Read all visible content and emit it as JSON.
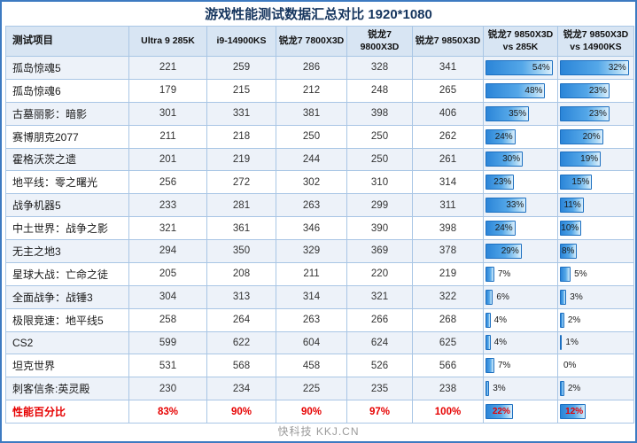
{
  "title": "游戏性能测试数据汇总对比 1920*1080",
  "watermark": "快科技 KKJ.CN",
  "colors": {
    "frame_blue": "#3d7ac1",
    "header_bg": "#d8e5f3",
    "row_shade": "#edf2f9",
    "grid_line": "#a9c6e5",
    "bar_fill": "#2b85d8",
    "bar_border": "#1c6fc0",
    "summary_red": "#e60000",
    "title_color": "#15355e"
  },
  "chart_data": {
    "type": "table",
    "title": "游戏性能测试数据汇总对比 1920*1080",
    "columns": [
      "测试项目",
      "Ultra 9 285K",
      "i9-14900KS",
      "锐龙7 7800X3D",
      "锐龙7 9800X3D",
      "锐龙7 9850X3D",
      "锐龙7 9850X3D\nvs 285K",
      "锐龙7 9850X3D\nvs 14900KS"
    ],
    "bar_scale": {
      "vs_285k_max": 54,
      "vs_14900ks_max": 32
    },
    "rows": [
      {
        "game": "孤岛惊魂5",
        "fps": [
          "221",
          "259",
          "286",
          "328",
          "341"
        ],
        "vs_285k": 54,
        "vs_14900ks": 32
      },
      {
        "game": "孤岛惊魂6",
        "fps": [
          "179",
          "215",
          "212",
          "248",
          "265"
        ],
        "vs_285k": 48,
        "vs_14900ks": 23
      },
      {
        "game": "古墓丽影：暗影",
        "fps": [
          "301",
          "331",
          "381",
          "398",
          "406"
        ],
        "vs_285k": 35,
        "vs_14900ks": 23
      },
      {
        "game": "赛博朋克2077",
        "fps": [
          "211",
          "218",
          "250",
          "250",
          "262"
        ],
        "vs_285k": 24,
        "vs_14900ks": 20
      },
      {
        "game": "霍格沃茨之遗",
        "fps": [
          "201",
          "219",
          "244",
          "250",
          "261"
        ],
        "vs_285k": 30,
        "vs_14900ks": 19
      },
      {
        "game": "地平线：零之曙光",
        "fps": [
          "256",
          "272",
          "302",
          "310",
          "314"
        ],
        "vs_285k": 23,
        "vs_14900ks": 15
      },
      {
        "game": "战争机器5",
        "fps": [
          "233",
          "281",
          "263",
          "299",
          "311"
        ],
        "vs_285k": 33,
        "vs_14900ks": 11
      },
      {
        "game": "中土世界：战争之影",
        "fps": [
          "321",
          "361",
          "346",
          "390",
          "398"
        ],
        "vs_285k": 24,
        "vs_14900ks": 10
      },
      {
        "game": "无主之地3",
        "fps": [
          "294",
          "350",
          "329",
          "369",
          "378"
        ],
        "vs_285k": 29,
        "vs_14900ks": 8
      },
      {
        "game": "星球大战：亡命之徒",
        "fps": [
          "205",
          "208",
          "211",
          "220",
          "219"
        ],
        "vs_285k": 7,
        "vs_14900ks": 5
      },
      {
        "game": "全面战争：战锤3",
        "fps": [
          "304",
          "313",
          "314",
          "321",
          "322"
        ],
        "vs_285k": 6,
        "vs_14900ks": 3
      },
      {
        "game": "极限竞速：地平线5",
        "fps": [
          "258",
          "264",
          "263",
          "266",
          "268"
        ],
        "vs_285k": 4,
        "vs_14900ks": 2
      },
      {
        "game": "CS2",
        "fps": [
          "599",
          "622",
          "604",
          "624",
          "625"
        ],
        "vs_285k": 4,
        "vs_14900ks": 1
      },
      {
        "game": "坦克世界",
        "fps": [
          "531",
          "568",
          "458",
          "526",
          "566"
        ],
        "vs_285k": 7,
        "vs_14900ks": 0
      },
      {
        "game": "刺客信条:英灵殿",
        "fps": [
          "230",
          "234",
          "225",
          "235",
          "238"
        ],
        "vs_285k": 3,
        "vs_14900ks": 2
      }
    ],
    "summary_row": {
      "game": "性能百分比",
      "fps": [
        "83%",
        "90%",
        "90%",
        "97%",
        "100%"
      ],
      "vs_285k": 22,
      "vs_14900ks": 12
    }
  }
}
